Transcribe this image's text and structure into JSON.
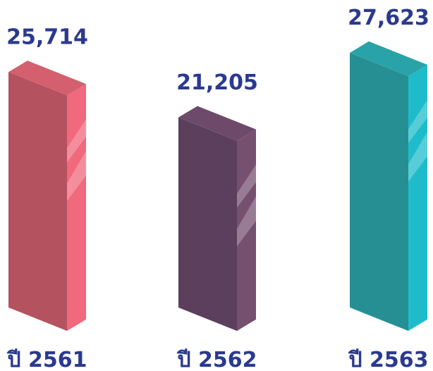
{
  "chart_data": {
    "type": "bar",
    "categories": [
      "ปี 2561",
      "ปี 2562",
      "ปี 2563"
    ],
    "values": [
      25714,
      21205,
      27623
    ],
    "value_labels": [
      "25,714",
      "21,205",
      "27,623"
    ],
    "colors": [
      "#b4525f",
      "#5b3f5c",
      "#268f94"
    ],
    "side_colors": [
      "#f0697d",
      "#76506f",
      "#1ebccb"
    ],
    "top_colors": [
      "#d45f6e",
      "#6d4a69",
      "#2aa3a8"
    ]
  }
}
